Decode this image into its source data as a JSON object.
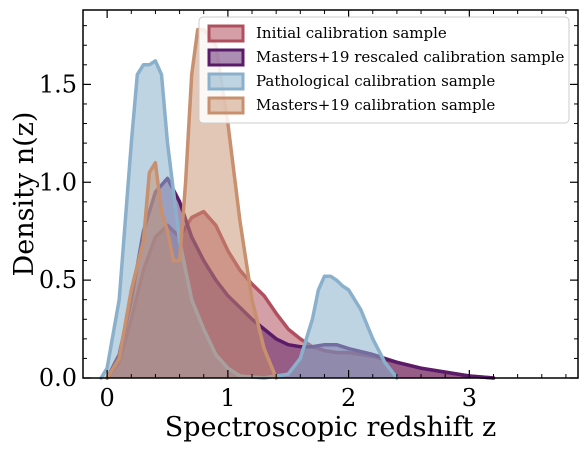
{
  "chart_data": {
    "type": "area",
    "xlabel": "Spectroscopic redshift z",
    "ylabel": "Density n(z)",
    "xlim": [
      -0.2,
      3.9
    ],
    "ylim": [
      0,
      1.88
    ],
    "x_ticks": [
      0,
      1,
      2,
      3
    ],
    "x_tick_labels": [
      "0",
      "1",
      "2",
      "3"
    ],
    "y_ticks": [
      0.0,
      0.5,
      1.0,
      1.5
    ],
    "y_tick_labels": [
      "0.0",
      "0.5",
      "1.0",
      "1.5"
    ],
    "grid": false,
    "legend_position": "top-right",
    "series": [
      {
        "name": "Initial calibration sample",
        "color": "#b0505f",
        "fill_opacity": 0.55,
        "x": [
          0.0,
          0.1,
          0.2,
          0.3,
          0.4,
          0.5,
          0.6,
          0.7,
          0.8,
          0.9,
          1.0,
          1.1,
          1.2,
          1.3,
          1.4,
          1.5,
          1.6,
          1.7,
          1.8,
          1.9,
          2.0,
          2.2,
          2.4,
          2.6,
          2.8,
          3.0,
          3.2
        ],
        "y": [
          0.0,
          0.08,
          0.3,
          0.55,
          0.72,
          0.78,
          0.72,
          0.82,
          0.85,
          0.78,
          0.65,
          0.55,
          0.48,
          0.42,
          0.33,
          0.25,
          0.2,
          0.16,
          0.14,
          0.13,
          0.13,
          0.11,
          0.08,
          0.05,
          0.03,
          0.01,
          0.0
        ]
      },
      {
        "name": "Masters+19 rescaled calibration sample",
        "color": "#5a1c68",
        "fill_opacity": 0.5,
        "x": [
          0.0,
          0.1,
          0.2,
          0.3,
          0.4,
          0.5,
          0.6,
          0.7,
          0.8,
          0.9,
          1.0,
          1.1,
          1.2,
          1.3,
          1.4,
          1.5,
          1.6,
          1.7,
          1.8,
          1.9,
          2.0,
          2.2,
          2.4,
          2.6,
          2.8,
          3.0,
          3.2
        ],
        "y": [
          0.0,
          0.12,
          0.4,
          0.75,
          0.95,
          1.02,
          0.9,
          0.72,
          0.6,
          0.5,
          0.42,
          0.36,
          0.3,
          0.25,
          0.2,
          0.17,
          0.16,
          0.16,
          0.17,
          0.17,
          0.15,
          0.12,
          0.08,
          0.05,
          0.03,
          0.01,
          0.0
        ]
      },
      {
        "name": "Pathological calibration sample",
        "color": "#8ab0cc",
        "fill_opacity": 0.55,
        "x": [
          -0.05,
          0.0,
          0.1,
          0.2,
          0.25,
          0.3,
          0.35,
          0.4,
          0.45,
          0.5,
          0.6,
          0.7,
          0.8,
          0.9,
          1.0,
          1.1,
          1.3,
          1.5,
          1.6,
          1.7,
          1.75,
          1.8,
          1.85,
          1.9,
          1.95,
          2.0,
          2.1,
          2.2,
          2.3,
          2.4
        ],
        "y": [
          0.0,
          0.05,
          0.4,
          1.2,
          1.55,
          1.6,
          1.6,
          1.62,
          1.55,
          1.2,
          0.7,
          0.4,
          0.25,
          0.12,
          0.05,
          0.01,
          0.0,
          0.02,
          0.1,
          0.3,
          0.45,
          0.52,
          0.52,
          0.5,
          0.47,
          0.45,
          0.35,
          0.2,
          0.08,
          0.0
        ]
      },
      {
        "name": "Masters+19 calibration sample",
        "color": "#c8906e",
        "fill_opacity": 0.5,
        "x": [
          0.0,
          0.1,
          0.2,
          0.3,
          0.35,
          0.4,
          0.45,
          0.5,
          0.55,
          0.6,
          0.65,
          0.7,
          0.75,
          0.8,
          0.9,
          1.0,
          1.1,
          1.2,
          1.3,
          1.4
        ],
        "y": [
          0.0,
          0.1,
          0.45,
          0.7,
          1.05,
          1.1,
          0.85,
          0.75,
          0.6,
          0.6,
          1.0,
          1.55,
          1.78,
          1.78,
          1.7,
          1.3,
          0.8,
          0.4,
          0.15,
          0.0
        ]
      }
    ]
  }
}
